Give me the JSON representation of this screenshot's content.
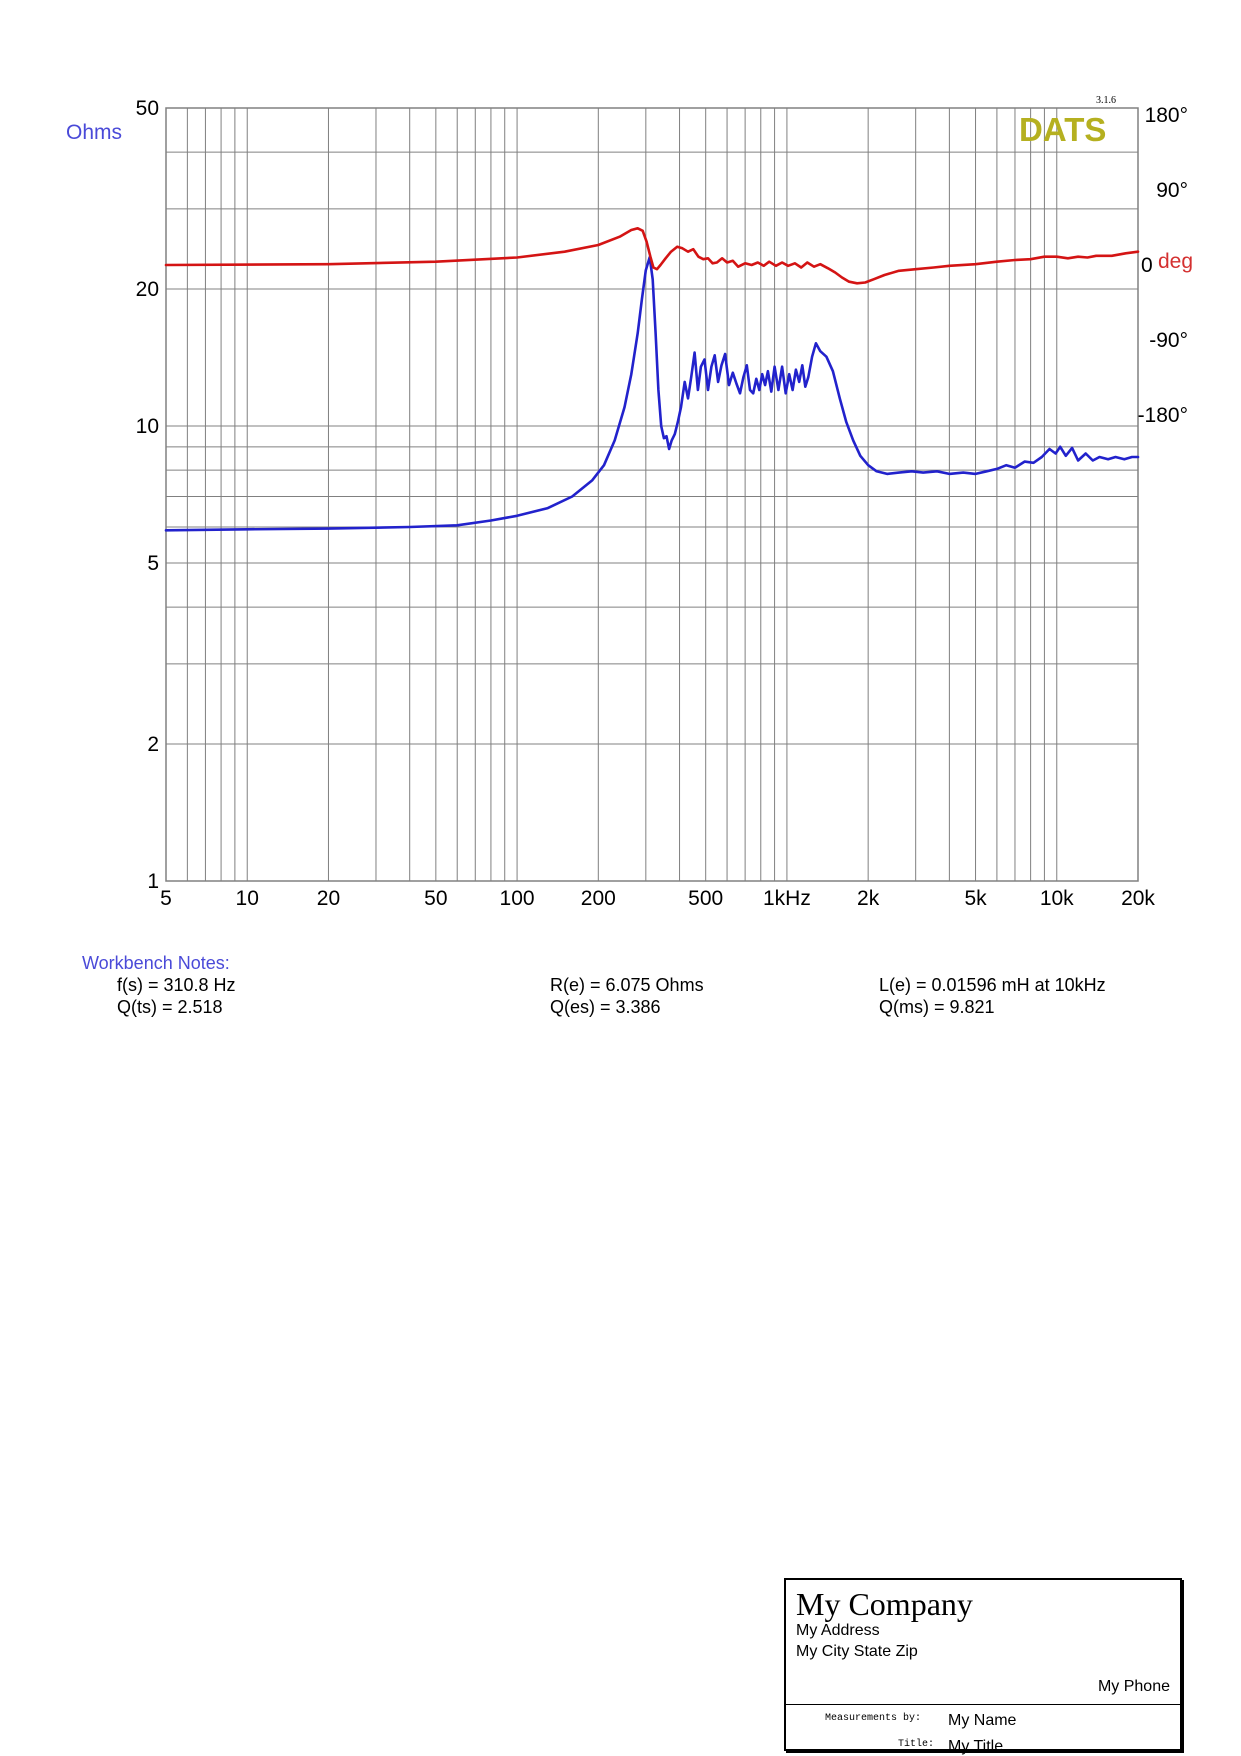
{
  "chart_data": {
    "type": "line",
    "x_scale": "log",
    "y_scale": "log",
    "xlim": [
      5,
      20000
    ],
    "ylim": [
      1,
      50
    ],
    "x_ticks": [
      5,
      10,
      20,
      50,
      100,
      200,
      500,
      1000,
      2000,
      5000,
      10000,
      20000
    ],
    "x_tick_labels": [
      "5",
      "10",
      "20",
      "50",
      "100",
      "200",
      "500",
      "1kHz",
      "2k",
      "5k",
      "10k",
      "20k"
    ],
    "y_ticks": [
      1,
      2,
      5,
      10,
      20,
      50
    ],
    "y_tick_labels": [
      "1",
      "2",
      "5",
      "10",
      "20",
      "50"
    ],
    "y_left_label": "Ohms",
    "y_right_label": "deg",
    "y_right_lim": [
      -180,
      180
    ],
    "y_right_ticks": [
      180,
      90,
      0,
      -90,
      -180
    ],
    "y_right_tick_labels": [
      "180°",
      "90°",
      "0",
      "-90°",
      "-180°"
    ],
    "grid": true,
    "logo": "DATS",
    "version": "3.1.6",
    "colors": {
      "impedance": "#2222cc",
      "phase": "#d41414",
      "ohms_label": "#4a4ad8",
      "deg_label": "#d43030",
      "logo": "#b5b020",
      "grid": "#808080"
    },
    "series": [
      {
        "key": "impedance",
        "axis": "left",
        "points": [
          [
            5,
            5.9
          ],
          [
            10,
            5.93
          ],
          [
            20,
            5.95
          ],
          [
            40,
            6.0
          ],
          [
            60,
            6.05
          ],
          [
            80,
            6.2
          ],
          [
            100,
            6.35
          ],
          [
            130,
            6.6
          ],
          [
            160,
            7.0
          ],
          [
            190,
            7.6
          ],
          [
            210,
            8.2
          ],
          [
            230,
            9.3
          ],
          [
            250,
            11.0
          ],
          [
            265,
            13.0
          ],
          [
            280,
            16.0
          ],
          [
            290,
            19.0
          ],
          [
            300,
            22.0
          ],
          [
            310,
            23.5
          ],
          [
            318,
            21.0
          ],
          [
            326,
            16.0
          ],
          [
            334,
            12.0
          ],
          [
            342,
            10.0
          ],
          [
            350,
            9.4
          ],
          [
            358,
            9.5
          ],
          [
            366,
            8.9
          ],
          [
            374,
            9.3
          ],
          [
            384,
            9.6
          ],
          [
            394,
            10.2
          ],
          [
            405,
            11.0
          ],
          [
            418,
            12.5
          ],
          [
            430,
            11.5
          ],
          [
            442,
            12.8
          ],
          [
            455,
            14.5
          ],
          [
            468,
            12.0
          ],
          [
            480,
            13.5
          ],
          [
            495,
            14.0
          ],
          [
            510,
            12.0
          ],
          [
            525,
            13.5
          ],
          [
            540,
            14.3
          ],
          [
            556,
            12.5
          ],
          [
            572,
            13.6
          ],
          [
            590,
            14.4
          ],
          [
            610,
            12.3
          ],
          [
            630,
            13.1
          ],
          [
            650,
            12.4
          ],
          [
            670,
            11.8
          ],
          [
            690,
            12.8
          ],
          [
            710,
            13.6
          ],
          [
            730,
            12.0
          ],
          [
            750,
            11.8
          ],
          [
            770,
            12.7
          ],
          [
            790,
            12.0
          ],
          [
            810,
            13.0
          ],
          [
            830,
            12.3
          ],
          [
            850,
            13.2
          ],
          [
            875,
            11.9
          ],
          [
            900,
            13.5
          ],
          [
            930,
            12.0
          ],
          [
            960,
            13.5
          ],
          [
            990,
            11.8
          ],
          [
            1020,
            13.0
          ],
          [
            1050,
            12.0
          ],
          [
            1080,
            13.3
          ],
          [
            1110,
            12.5
          ],
          [
            1140,
            13.6
          ],
          [
            1170,
            12.2
          ],
          [
            1200,
            12.8
          ],
          [
            1240,
            14.2
          ],
          [
            1280,
            15.2
          ],
          [
            1330,
            14.6
          ],
          [
            1400,
            14.2
          ],
          [
            1480,
            13.2
          ],
          [
            1570,
            11.5
          ],
          [
            1660,
            10.2
          ],
          [
            1760,
            9.3
          ],
          [
            1870,
            8.6
          ],
          [
            2000,
            8.2
          ],
          [
            2150,
            7.95
          ],
          [
            2350,
            7.85
          ],
          [
            2600,
            7.9
          ],
          [
            2900,
            7.95
          ],
          [
            3200,
            7.9
          ],
          [
            3600,
            7.95
          ],
          [
            4000,
            7.85
          ],
          [
            4500,
            7.9
          ],
          [
            5000,
            7.85
          ],
          [
            5500,
            7.95
          ],
          [
            6000,
            8.05
          ],
          [
            6500,
            8.2
          ],
          [
            7000,
            8.1
          ],
          [
            7600,
            8.35
          ],
          [
            8200,
            8.3
          ],
          [
            8800,
            8.55
          ],
          [
            9400,
            8.9
          ],
          [
            9900,
            8.7
          ],
          [
            10300,
            9.0
          ],
          [
            10800,
            8.6
          ],
          [
            11400,
            8.95
          ],
          [
            12000,
            8.4
          ],
          [
            12800,
            8.7
          ],
          [
            13600,
            8.4
          ],
          [
            14400,
            8.55
          ],
          [
            15500,
            8.45
          ],
          [
            16500,
            8.55
          ],
          [
            17800,
            8.45
          ],
          [
            19000,
            8.55
          ],
          [
            20000,
            8.55
          ]
        ]
      },
      {
        "key": "phase",
        "axis": "right",
        "points": [
          [
            5,
            0
          ],
          [
            20,
            1
          ],
          [
            50,
            4
          ],
          [
            100,
            9
          ],
          [
            150,
            16
          ],
          [
            200,
            24
          ],
          [
            240,
            34
          ],
          [
            265,
            42
          ],
          [
            280,
            44
          ],
          [
            292,
            41
          ],
          [
            302,
            28
          ],
          [
            312,
            10
          ],
          [
            320,
            -3
          ],
          [
            330,
            -5
          ],
          [
            340,
            0
          ],
          [
            355,
            8
          ],
          [
            372,
            16
          ],
          [
            392,
            22
          ],
          [
            410,
            20
          ],
          [
            430,
            16
          ],
          [
            450,
            19
          ],
          [
            470,
            10
          ],
          [
            490,
            7
          ],
          [
            510,
            8
          ],
          [
            530,
            2
          ],
          [
            550,
            3
          ],
          [
            575,
            8
          ],
          [
            600,
            3
          ],
          [
            630,
            5
          ],
          [
            660,
            -2
          ],
          [
            700,
            2
          ],
          [
            740,
            0
          ],
          [
            780,
            3
          ],
          [
            820,
            -1
          ],
          [
            860,
            4
          ],
          [
            910,
            -1
          ],
          [
            960,
            3
          ],
          [
            1010,
            -1
          ],
          [
            1070,
            2
          ],
          [
            1130,
            -3
          ],
          [
            1190,
            3
          ],
          [
            1260,
            -2
          ],
          [
            1330,
            1
          ],
          [
            1420,
            -4
          ],
          [
            1510,
            -9
          ],
          [
            1600,
            -15
          ],
          [
            1700,
            -20
          ],
          [
            1820,
            -22
          ],
          [
            1950,
            -21
          ],
          [
            2100,
            -17
          ],
          [
            2300,
            -12
          ],
          [
            2600,
            -7
          ],
          [
            3000,
            -5
          ],
          [
            3500,
            -3
          ],
          [
            4000,
            -1
          ],
          [
            5000,
            1
          ],
          [
            6000,
            4
          ],
          [
            7000,
            6
          ],
          [
            8000,
            7
          ],
          [
            9000,
            10
          ],
          [
            10000,
            10
          ],
          [
            11000,
            8
          ],
          [
            12000,
            10
          ],
          [
            13000,
            9
          ],
          [
            14000,
            11
          ],
          [
            16000,
            11
          ],
          [
            18000,
            14
          ],
          [
            20000,
            16
          ]
        ]
      }
    ]
  },
  "notes": {
    "title": "Workbench Notes:",
    "fs": "f(s) = 310.8 Hz",
    "qts": "Q(ts) = 2.518",
    "re": "R(e) = 6.075 Ohms",
    "qes": "Q(es) = 3.386",
    "le": "L(e) = 0.01596 mH at 10kHz",
    "qms": "Q(ms) = 9.821"
  },
  "title_block": {
    "company": "My Company",
    "address": "My Address",
    "city": "My City State Zip",
    "phone": "My Phone",
    "measured_by_label": "Measurements by:",
    "measured_by": "My Name",
    "title_label": "Title:",
    "title": "My Title"
  }
}
